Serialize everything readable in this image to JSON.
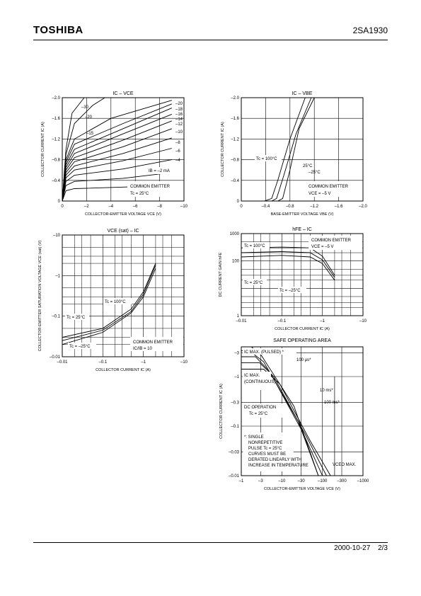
{
  "header": {
    "logo": "TOSHIBA",
    "part_number": "2SA1930"
  },
  "footer": {
    "date": "2000-10-27",
    "page": "2/3"
  },
  "chart_data": [
    {
      "type": "line",
      "title": "IC  –  VCE",
      "xlabel": "COLLECTOR-EMITTER VOLTAGE   VCE   (V)",
      "ylabel": "COLLECTOR CURRENT   IC   (A)",
      "xticks": [
        "0",
        "–2",
        "–4",
        "–6",
        "–8",
        "–10"
      ],
      "yticks": [
        "0",
        "–0.4",
        "–0.8",
        "–1.2",
        "–1.6",
        "–2.0"
      ],
      "xlim": [
        0,
        -10
      ],
      "ylim": [
        0,
        -2.0
      ],
      "annotations": [
        "COMMON EMITTER",
        "Tc = 25°C",
        "IB = –2 mA",
        "–30",
        "–20",
        "–15",
        "–20",
        "–18",
        "–16",
        "–14",
        "–12",
        "–10",
        "–8",
        "–6",
        "–4"
      ],
      "series": [
        {
          "values": [
            [
              0,
              0
            ],
            [
              -0.3,
              -1.0
            ],
            [
              -0.8,
              -1.7
            ],
            [
              -1.8,
              -2.0
            ]
          ]
        },
        {
          "values": [
            [
              0,
              0
            ],
            [
              -0.3,
              -0.9
            ],
            [
              -1,
              -1.5
            ],
            [
              -2.5,
              -1.85
            ],
            [
              -3.5,
              -2.0
            ]
          ]
        },
        {
          "values": [
            [
              0,
              0
            ],
            [
              -0.3,
              -0.8
            ],
            [
              -1,
              -1.2
            ],
            [
              -4,
              -1.6
            ],
            [
              -9,
              -1.95
            ]
          ]
        },
        {
          "values": [
            [
              0,
              0
            ],
            [
              -0.3,
              -0.75
            ],
            [
              -1,
              -1.1
            ],
            [
              -5,
              -1.5
            ],
            [
              -9,
              -1.88
            ]
          ]
        },
        {
          "values": [
            [
              0,
              0
            ],
            [
              -0.3,
              -0.7
            ],
            [
              -1,
              -1.0
            ],
            [
              -5,
              -1.4
            ],
            [
              -9,
              -1.8
            ]
          ]
        },
        {
          "values": [
            [
              0,
              0
            ],
            [
              -0.3,
              -0.65
            ],
            [
              -1,
              -0.92
            ],
            [
              -5,
              -1.3
            ],
            [
              -9,
              -1.68
            ]
          ]
        },
        {
          "values": [
            [
              0,
              0
            ],
            [
              -0.3,
              -0.6
            ],
            [
              -1,
              -0.84
            ],
            [
              -5,
              -1.18
            ],
            [
              -9,
              -1.55
            ]
          ]
        },
        {
          "values": [
            [
              0,
              0
            ],
            [
              -0.3,
              -0.55
            ],
            [
              -1,
              -0.76
            ],
            [
              -5,
              -1.05
            ],
            [
              -9,
              -1.4
            ]
          ]
        },
        {
          "values": [
            [
              0,
              0
            ],
            [
              -0.3,
              -0.5
            ],
            [
              -1,
              -0.68
            ],
            [
              -5,
              -0.92
            ],
            [
              -9,
              -1.22
            ]
          ]
        },
        {
          "values": [
            [
              0,
              0
            ],
            [
              -0.3,
              -0.45
            ],
            [
              -1,
              -0.6
            ],
            [
              -5,
              -0.78
            ],
            [
              -9,
              -1.02
            ]
          ]
        },
        {
          "values": [
            [
              0,
              0
            ],
            [
              -0.3,
              -0.38
            ],
            [
              -1,
              -0.5
            ],
            [
              -5,
              -0.62
            ],
            [
              -9,
              -0.8
            ]
          ]
        },
        {
          "values": [
            [
              0,
              0
            ],
            [
              -0.3,
              -0.3
            ],
            [
              -1,
              -0.38
            ],
            [
              -5,
              -0.44
            ],
            [
              -9,
              -0.55
            ]
          ]
        },
        {
          "values": [
            [
              0,
              0
            ],
            [
              -0.3,
              -0.2
            ],
            [
              -1,
              -0.24
            ],
            [
              -5,
              -0.27
            ],
            [
              -9,
              -0.3
            ]
          ]
        }
      ]
    },
    {
      "type": "line",
      "title": "IC  –  VBE",
      "xlabel": "BASE-EMITTER VOLTAGE   VBE   (V)",
      "ylabel": "COLLECTOR CURRENT   IC   (A)",
      "xticks": [
        "0",
        "–0.4",
        "–0.8",
        "–1.2",
        "–1.6",
        "–2.0"
      ],
      "yticks": [
        "0",
        "–0.4",
        "–0.8",
        "–1.2",
        "–1.6",
        "–2.0"
      ],
      "xlim": [
        0,
        -2.0
      ],
      "ylim": [
        0,
        -2.0
      ],
      "annotations": [
        "Tc = 100°C",
        "25°C",
        "–25°C",
        "COMMON EMITTER",
        "VCE = –5 V"
      ],
      "series": [
        {
          "name": "Tc = 100°C",
          "values": [
            [
              -0.38,
              0
            ],
            [
              -0.5,
              -0.05
            ],
            [
              -0.6,
              -0.4
            ],
            [
              -0.8,
              -1.2
            ],
            [
              -1.05,
              -2.0
            ]
          ]
        },
        {
          "name": "25°C",
          "values": [
            [
              -0.5,
              0
            ],
            [
              -0.58,
              -0.05
            ],
            [
              -0.7,
              -0.5
            ],
            [
              -0.9,
              -1.3
            ],
            [
              -1.15,
              -2.0
            ]
          ]
        },
        {
          "name": "–25°C",
          "values": [
            [
              -0.6,
              0
            ],
            [
              -0.68,
              -0.05
            ],
            [
              -0.8,
              -0.6
            ],
            [
              -0.95,
              -1.4
            ],
            [
              -1.2,
              -2.0
            ]
          ]
        }
      ]
    },
    {
      "type": "line",
      "title": "VCE (sat)  –  IC",
      "xlabel": "COLLECTOR CURRENT   IC   (A)",
      "ylabel": "COLLECTOR-EMITTER SATURATION VOLTAGE   VCE (sat)   (V)",
      "xticks": [
        "–0.01",
        "–0.1",
        "–1",
        "–10"
      ],
      "yticks": [
        "–0.01",
        "–0.1",
        "–1",
        "–10"
      ],
      "xscale": "log",
      "yscale": "log",
      "annotations": [
        "Tc = 100°C",
        "Tc = 25°C",
        "Tc = –25°C",
        "COMMON EMITTER",
        "IC/IB = 10"
      ],
      "series": [
        {
          "name": "Tc = 100°C",
          "values": [
            [
              -0.01,
              -0.03
            ],
            [
              -0.1,
              -0.05
            ],
            [
              -0.5,
              -0.15
            ],
            [
              -1,
              -0.4
            ],
            [
              -2,
              -2
            ]
          ]
        },
        {
          "name": "Tc = 25°C",
          "values": [
            [
              -0.01,
              -0.025
            ],
            [
              -0.1,
              -0.045
            ],
            [
              -0.5,
              -0.13
            ],
            [
              -1,
              -0.35
            ],
            [
              -2,
              -1.8
            ]
          ]
        },
        {
          "name": "Tc = –25°C",
          "values": [
            [
              -0.01,
              -0.02
            ],
            [
              -0.1,
              -0.04
            ],
            [
              -0.5,
              -0.12
            ],
            [
              -1,
              -0.3
            ],
            [
              -2,
              -1.5
            ]
          ]
        }
      ]
    },
    {
      "type": "line",
      "title": "hFE  –  IC",
      "xlabel": "COLLECTOR CURRENT   IC   (A)",
      "ylabel": "DC CURRENT GAIN   hFE",
      "xticks": [
        "–0.01",
        "–0.1",
        "–1",
        "–10"
      ],
      "yticks": [
        "1",
        "100",
        "1000"
      ],
      "xscale": "log",
      "yscale": "log",
      "annotations": [
        "COMMON EMITTER",
        "VCE = –5 V",
        "Tc = 100°C",
        "Tc = 25°C",
        "Tc = –25°C"
      ],
      "series": [
        {
          "name": "Tc = 100°C",
          "values": [
            [
              -0.01,
              300
            ],
            [
              -0.1,
              320
            ],
            [
              -0.5,
              300
            ],
            [
              -1,
              150
            ],
            [
              -2,
              30
            ]
          ]
        },
        {
          "name": "Tc = 25°C",
          "values": [
            [
              -0.01,
              200
            ],
            [
              -0.1,
              220
            ],
            [
              -0.5,
              200
            ],
            [
              -1,
              110
            ],
            [
              -2,
              25
            ]
          ]
        },
        {
          "name": "Tc = –25°C",
          "values": [
            [
              -0.01,
              140
            ],
            [
              -0.1,
              160
            ],
            [
              -0.5,
              140
            ],
            [
              -1,
              80
            ],
            [
              -2,
              20
            ]
          ]
        }
      ]
    },
    {
      "type": "line",
      "title": "SAFE OPERATING AREA",
      "xlabel": "COLLECTOR-EMITTER VOLTAGE   VCE   (V)",
      "ylabel": "COLLECTOR CURRENT   IC   (A)",
      "xticks": [
        "–1",
        "–3",
        "–10",
        "–30",
        "–100",
        "–300",
        "–1000"
      ],
      "yticks": [
        "–0.01",
        "–0.03",
        "–0.1",
        "–0.3",
        "–1",
        "–3"
      ],
      "xscale": "log",
      "yscale": "log",
      "annotations": [
        "IC MAX. (PULSED) *",
        "IC MAX. (CONTINUOUS)",
        "100 μs*",
        "10 ms*",
        "100 ms*",
        "DC OPERATION",
        "Tc = 25°C",
        "*: SINGLE NONREPETITIVE PULSE  Tc = 25°C",
        "CURVES MUST BE DERATED LINEARLY WITH INCREASE IN TEMPERATURE",
        "VCEO MAX."
      ]
    }
  ]
}
